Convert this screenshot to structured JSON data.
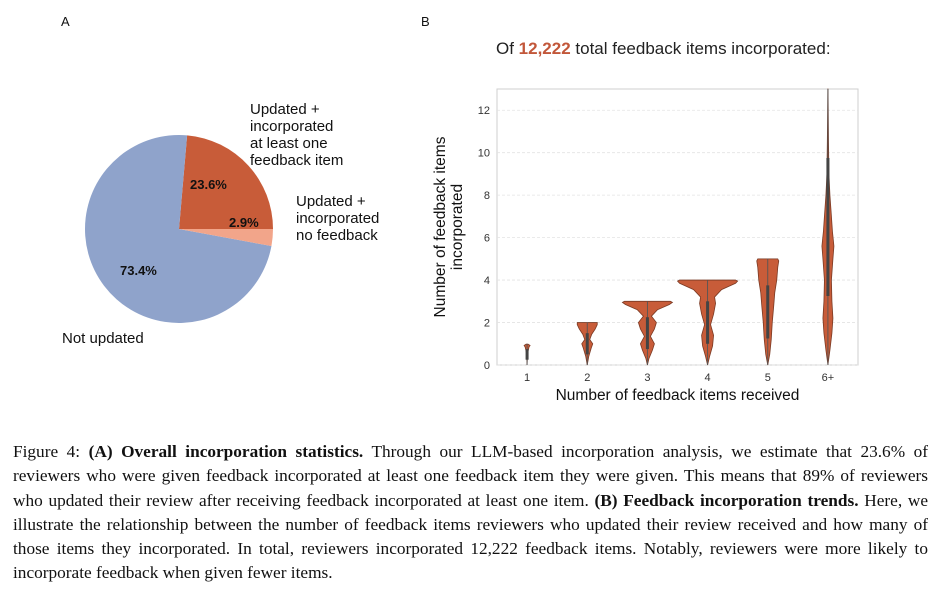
{
  "panel_a": {
    "letter": "A"
  },
  "panel_b": {
    "letter": "B"
  },
  "chart_data": [
    {
      "type": "pie",
      "slices": [
        {
          "label": "Not updated",
          "value": 73.4,
          "display": "73.4%",
          "color": "#8fa3cb"
        },
        {
          "label": "Updated +\n incorporated\n at least one\n feedback item",
          "value": 23.6,
          "display": "23.6%",
          "color": "#c85c39"
        },
        {
          "label": "Updated +\n incorporated\n no feedback",
          "value": 2.9,
          "display": "2.9%",
          "color": "#f2a58a"
        }
      ]
    },
    {
      "type": "violin",
      "title_prefix": "Of ",
      "title_number": "12,222",
      "title_suffix": " total feedback items incorporated:",
      "xlabel": "Number of feedback items received",
      "ylabel": "Number of feedback items incorporated",
      "categories": [
        "1",
        "2",
        "3",
        "4",
        "5",
        "6+"
      ],
      "yticks": [
        0,
        2,
        4,
        6,
        8,
        10,
        12
      ],
      "ylim": [
        0,
        13
      ],
      "grid": "horizontal",
      "color": "#c85c39",
      "max_incorporated": [
        1,
        2,
        3,
        4,
        5,
        13
      ]
    }
  ],
  "caption": {
    "prefix": "Figure 4: ",
    "a_bold": "(A) Overall incorporation statistics.",
    "a_text": " Through our LLM-based incorporation analysis, we estimate that 23.6% of reviewers who were given feedback incorporated at least one feedback item they were given. This means that 89% of reviewers who updated their review after receiving feedback incorporated at least one item. ",
    "b_bold": "(B) Feedback incorporation trends.",
    "b_text": " Here, we illustrate the relationship between the number of feedback items reviewers who updated their review received and how many of those items they incorporated. In total, reviewers incorporated 12,222 feedback items. Notably, reviewers were more likely to incorporate feedback when given fewer items."
  }
}
